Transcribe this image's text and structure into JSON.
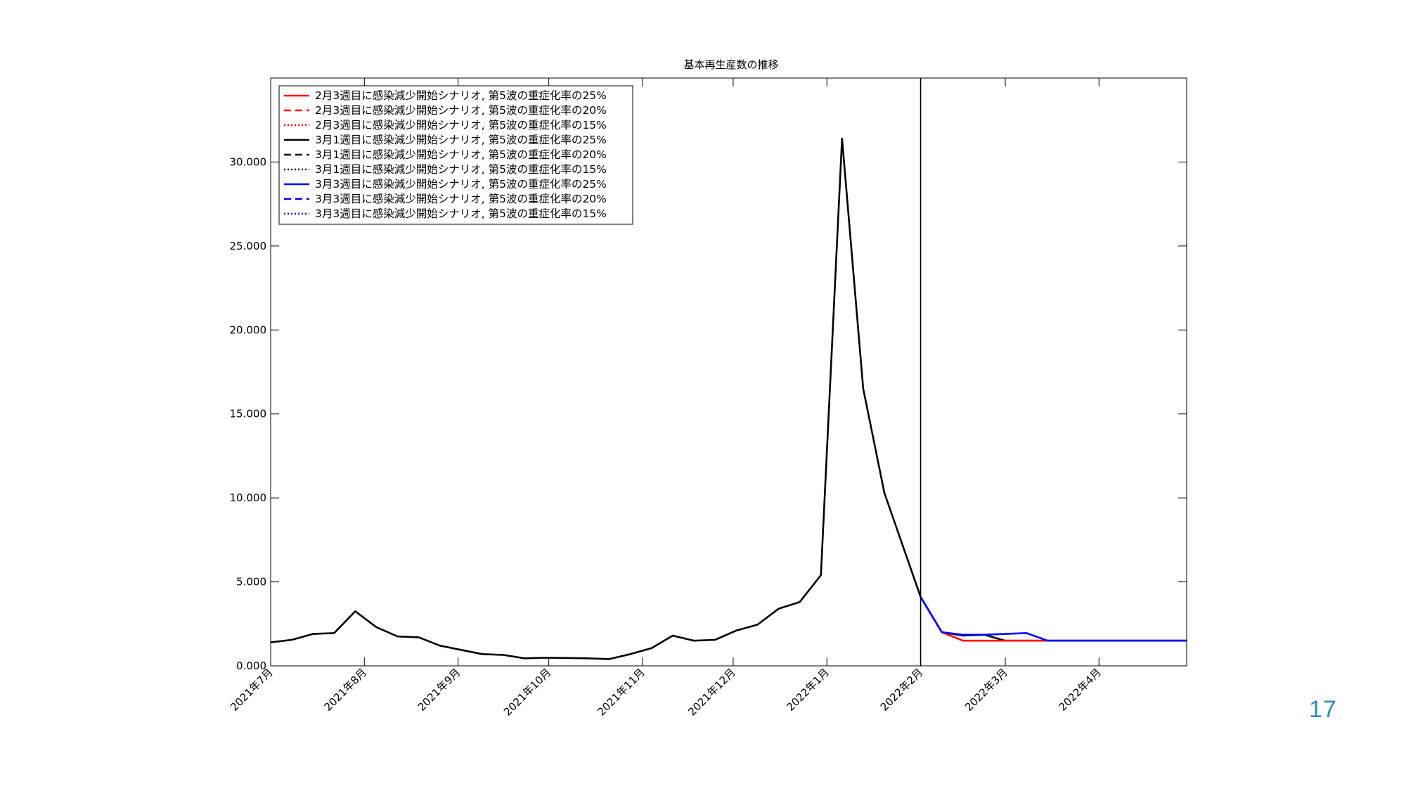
{
  "slide": {
    "page_number": "17"
  },
  "chart_data": {
    "type": "line",
    "title": "基本再生産数の推移",
    "xlabel": "",
    "ylabel": "",
    "x_axis": {
      "start": "2021-07-01",
      "end": "2022-04-30",
      "tick_dates": [
        "2021-07-01",
        "2021-08-01",
        "2021-09-01",
        "2021-10-01",
        "2021-11-01",
        "2021-12-01",
        "2022-01-01",
        "2022-02-01",
        "2022-03-01",
        "2022-04-01"
      ],
      "tick_labels": [
        "2021年7月",
        "2021年8月",
        "2021年9月",
        "2021年10月",
        "2021年11月",
        "2021年12月",
        "2022年1月",
        "2022年2月",
        "2022年3月",
        "2022年4月"
      ],
      "tick_label_rotation": -45
    },
    "y_axis": {
      "ylim": [
        0,
        35
      ],
      "ticks": [
        0,
        5,
        10,
        15,
        20,
        25,
        30
      ],
      "tick_labels": [
        "0.000",
        "5.000",
        "10.000",
        "15.000",
        "20.000",
        "25.000",
        "30.000"
      ]
    },
    "grid": false,
    "legend": {
      "placement": "top-left"
    },
    "reference_line": {
      "x": "2022-02-01",
      "color": "#000000"
    },
    "series": [
      {
        "name": "3月1週目に感染減少開始シナリオ, 第5波の重症化率の25%",
        "color": "#000000",
        "dash": "solid",
        "x": [
          "2021-07-01",
          "2021-07-08",
          "2021-07-15",
          "2021-07-22",
          "2021-07-29",
          "2021-08-05",
          "2021-08-12",
          "2021-08-19",
          "2021-08-26",
          "2021-09-02",
          "2021-09-09",
          "2021-09-16",
          "2021-09-23",
          "2021-09-30",
          "2021-10-07",
          "2021-10-14",
          "2021-10-21",
          "2021-10-28",
          "2021-11-04",
          "2021-11-11",
          "2021-11-18",
          "2021-11-25",
          "2021-12-02",
          "2021-12-09",
          "2021-12-16",
          "2021-12-23",
          "2021-12-30",
          "2022-01-06",
          "2022-01-13",
          "2022-01-20",
          "2022-02-01",
          "2022-02-08",
          "2022-02-15",
          "2022-02-22",
          "2022-03-01",
          "2022-03-08",
          "2022-03-15",
          "2022-03-22",
          "2022-03-29",
          "2022-04-05",
          "2022-04-12",
          "2022-04-19",
          "2022-04-30"
        ],
        "y": [
          1.4,
          1.55,
          1.9,
          1.95,
          3.25,
          2.3,
          1.75,
          1.7,
          1.2,
          0.95,
          0.7,
          0.65,
          0.45,
          0.48,
          0.47,
          0.45,
          0.4,
          0.7,
          1.05,
          1.8,
          1.5,
          1.55,
          2.1,
          2.45,
          3.4,
          3.8,
          5.4,
          31.4,
          16.5,
          10.3,
          4.1,
          2.0,
          1.8,
          1.85,
          1.5,
          1.5,
          1.5,
          1.5,
          1.5,
          1.5,
          1.5,
          1.5,
          1.5
        ]
      },
      {
        "name": "3月1週目に感染減少開始シナリオ, 第5波の重症化率の20%",
        "color": "#000000",
        "dash": "dashed",
        "x": [],
        "y": []
      },
      {
        "name": "3月1週目に感染減少開始シナリオ, 第5波の重症化率の15%",
        "color": "#000000",
        "dash": "dotted",
        "x": [],
        "y": []
      },
      {
        "name": "2月3週目に感染減少開始シナリオ, 第5波の重症化率の25%",
        "color": "#ff0000",
        "dash": "solid",
        "x": [
          "2022-02-01",
          "2022-02-08",
          "2022-02-15",
          "2022-02-22",
          "2022-03-01",
          "2022-03-08",
          "2022-03-15",
          "2022-03-22",
          "2022-04-30"
        ],
        "y": [
          4.1,
          2.0,
          1.5,
          1.5,
          1.5,
          1.5,
          1.5,
          1.5,
          1.5
        ]
      },
      {
        "name": "2月3週目に感染減少開始シナリオ, 第5波の重症化率の20%",
        "color": "#ff0000",
        "dash": "dashed",
        "x": [],
        "y": []
      },
      {
        "name": "2月3週目に感染減少開始シナリオ, 第5波の重症化率の15%",
        "color": "#ff0000",
        "dash": "dotted",
        "x": [],
        "y": []
      },
      {
        "name": "3月3週目に感染減少開始シナリオ, 第5波の重症化率の25%",
        "color": "#0000ff",
        "dash": "solid",
        "x": [
          "2022-02-01",
          "2022-02-08",
          "2022-02-15",
          "2022-02-22",
          "2022-03-01",
          "2022-03-08",
          "2022-03-15",
          "2022-03-22",
          "2022-04-30"
        ],
        "y": [
          4.1,
          2.0,
          1.85,
          1.85,
          1.9,
          1.95,
          1.5,
          1.5,
          1.5
        ]
      },
      {
        "name": "3月3週目に感染減少開始シナリオ, 第5波の重症化率の20%",
        "color": "#0000ff",
        "dash": "dashed",
        "x": [],
        "y": []
      },
      {
        "name": "3月3週目に感染減少開始シナリオ, 第5波の重症化率の15%",
        "color": "#0000ff",
        "dash": "dotted",
        "x": [],
        "y": []
      }
    ],
    "legend_order": [
      "2月3週目に感染減少開始シナリオ, 第5波の重症化率の25%",
      "2月3週目に感染減少開始シナリオ, 第5波の重症化率の20%",
      "2月3週目に感染減少開始シナリオ, 第5波の重症化率の15%",
      "3月1週目に感染減少開始シナリオ, 第5波の重症化率の25%",
      "3月1週目に感染減少開始シナリオ, 第5波の重症化率の20%",
      "3月1週目に感染減少開始シナリオ, 第5波の重症化率の15%",
      "3月3週目に感染減少開始シナリオ, 第5波の重症化率の25%",
      "3月3週目に感染減少開始シナリオ, 第5波の重症化率の20%",
      "3月3週目に感染減少開始シナリオ, 第5波の重症化率の15%"
    ]
  }
}
